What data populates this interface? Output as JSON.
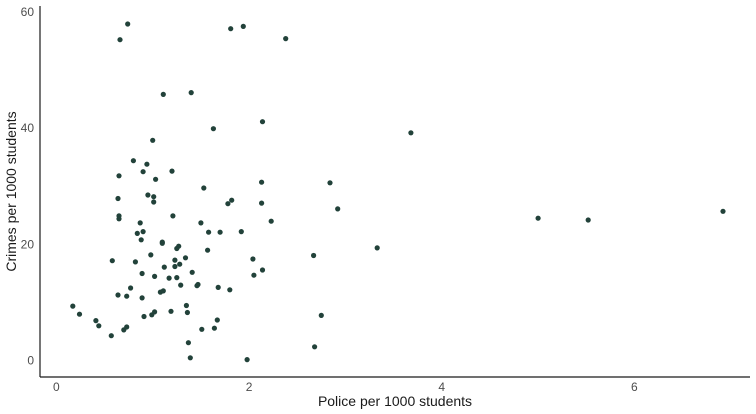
{
  "chart_data": {
    "type": "scatter",
    "title": "",
    "xlabel": "Police per 1000 students",
    "ylabel": "Crimes per 1000 students",
    "xlim": [
      -0.17,
      7.2
    ],
    "ylim": [
      -2.8,
      61
    ],
    "xticks": [
      0,
      2,
      4,
      6
    ],
    "yticks": [
      0,
      20,
      40,
      60
    ],
    "grid": false,
    "legend": "none",
    "point_color": "#22423a",
    "points": [
      [
        0.17,
        9.4
      ],
      [
        0.24,
        8.0
      ],
      [
        0.41,
        6.9
      ],
      [
        0.44,
        6.0
      ],
      [
        0.57,
        4.3
      ],
      [
        0.58,
        17.2
      ],
      [
        0.64,
        11.3
      ],
      [
        0.64,
        27.9
      ],
      [
        0.65,
        24.9
      ],
      [
        0.65,
        24.4
      ],
      [
        0.65,
        31.8
      ],
      [
        0.66,
        55.2
      ],
      [
        0.7,
        5.3
      ],
      [
        0.73,
        5.8
      ],
      [
        0.73,
        11.1
      ],
      [
        0.74,
        57.9
      ],
      [
        0.77,
        12.5
      ],
      [
        0.8,
        34.4
      ],
      [
        0.82,
        17.0
      ],
      [
        0.84,
        21.9
      ],
      [
        0.87,
        23.7
      ],
      [
        0.88,
        20.8
      ],
      [
        0.89,
        15.0
      ],
      [
        0.89,
        10.8
      ],
      [
        0.9,
        22.2
      ],
      [
        0.9,
        32.5
      ],
      [
        0.91,
        7.6
      ],
      [
        0.94,
        33.8
      ],
      [
        0.95,
        28.5
      ],
      [
        0.98,
        18.2
      ],
      [
        0.99,
        7.9
      ],
      [
        1.0,
        37.9
      ],
      [
        1.01,
        28.2
      ],
      [
        1.01,
        27.3
      ],
      [
        1.02,
        8.4
      ],
      [
        1.02,
        14.5
      ],
      [
        1.03,
        31.2
      ],
      [
        1.08,
        11.8
      ],
      [
        1.1,
        20.4
      ],
      [
        1.1,
        20.2
      ],
      [
        1.11,
        45.8
      ],
      [
        1.11,
        12.0
      ],
      [
        1.12,
        16.1
      ],
      [
        1.17,
        14.2
      ],
      [
        1.19,
        8.5
      ],
      [
        1.2,
        32.6
      ],
      [
        1.21,
        24.9
      ],
      [
        1.23,
        17.3
      ],
      [
        1.23,
        16.2
      ],
      [
        1.25,
        14.3
      ],
      [
        1.25,
        19.3
      ],
      [
        1.27,
        19.7
      ],
      [
        1.28,
        16.6
      ],
      [
        1.29,
        13.0
      ],
      [
        1.34,
        17.7
      ],
      [
        1.35,
        9.5
      ],
      [
        1.36,
        8.3
      ],
      [
        1.37,
        3.1
      ],
      [
        1.39,
        0.5
      ],
      [
        1.4,
        46.1
      ],
      [
        1.41,
        15.2
      ],
      [
        1.46,
        12.9
      ],
      [
        1.47,
        13.1
      ],
      [
        1.5,
        23.7
      ],
      [
        1.51,
        5.4
      ],
      [
        1.53,
        29.7
      ],
      [
        1.57,
        19.0
      ],
      [
        1.58,
        22.1
      ],
      [
        1.63,
        39.9
      ],
      [
        1.64,
        5.6
      ],
      [
        1.67,
        7.0
      ],
      [
        1.68,
        12.6
      ],
      [
        1.7,
        22.1
      ],
      [
        1.78,
        27.0
      ],
      [
        1.8,
        12.2
      ],
      [
        1.81,
        57.1
      ],
      [
        1.82,
        27.6
      ],
      [
        1.92,
        22.2
      ],
      [
        1.94,
        57.5
      ],
      [
        1.98,
        0.2
      ],
      [
        2.04,
        17.5
      ],
      [
        2.05,
        14.7
      ],
      [
        2.13,
        30.7
      ],
      [
        2.13,
        27.1
      ],
      [
        2.14,
        41.1
      ],
      [
        2.14,
        15.6
      ],
      [
        2.23,
        24.0
      ],
      [
        2.38,
        55.4
      ],
      [
        2.67,
        18.1
      ],
      [
        2.68,
        2.4
      ],
      [
        2.75,
        7.8
      ],
      [
        2.84,
        30.6
      ],
      [
        2.92,
        26.1
      ],
      [
        3.33,
        19.4
      ],
      [
        3.68,
        39.2
      ],
      [
        5.0,
        24.5
      ],
      [
        5.52,
        24.2
      ],
      [
        6.92,
        25.7
      ]
    ]
  }
}
